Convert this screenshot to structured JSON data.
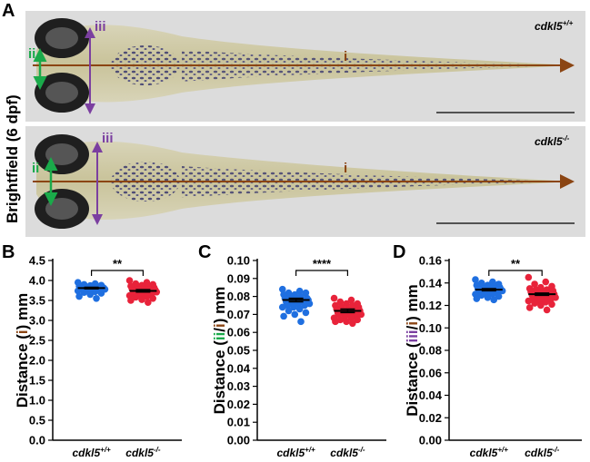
{
  "panel_a": {
    "letter": "A",
    "side_label": "Brightfield (6 dpf)",
    "top_image_genotype": "cdkl5",
    "top_image_genotype_sup": "+/+",
    "bottom_image_genotype": "cdkl5",
    "bottom_image_genotype_sup": "-/-",
    "marker_i": "i",
    "marker_ii": "ii",
    "marker_iii": "iii",
    "colors": {
      "i": "#8b4513",
      "ii": "#1aaa4a",
      "iii": "#7b3fa0"
    }
  },
  "chart_data": [
    {
      "type": "scatter",
      "letter": "B",
      "ylabel_prefix": "Distance (",
      "ylabel_marker": "i",
      "ylabel_suffix": ") mm",
      "marker_colors": [
        "#8b4513"
      ],
      "ylim": [
        0,
        4.5
      ],
      "yticks": [
        "0.0",
        "0.5",
        "1.0",
        "1.5",
        "2.0",
        "2.5",
        "3.0",
        "3.5",
        "4.0",
        "4.5"
      ],
      "categories": [
        "cdkl5",
        "cdkl5"
      ],
      "category_sups": [
        "+/+",
        "-/-"
      ],
      "significance": "**",
      "series": [
        {
          "color": "#1f6fe0",
          "mean": 3.81,
          "sem": 0.02,
          "values": [
            3.95,
            3.92,
            3.9,
            3.88,
            3.87,
            3.86,
            3.85,
            3.84,
            3.83,
            3.83,
            3.82,
            3.82,
            3.81,
            3.81,
            3.8,
            3.8,
            3.79,
            3.79,
            3.78,
            3.78,
            3.77,
            3.76,
            3.75,
            3.74,
            3.72,
            3.7,
            3.68,
            3.65,
            3.6,
            3.55
          ]
        },
        {
          "color": "#e8233a",
          "mean": 3.74,
          "sem": 0.03,
          "values": [
            4.0,
            3.95,
            3.92,
            3.9,
            3.88,
            3.86,
            3.85,
            3.83,
            3.82,
            3.8,
            3.79,
            3.78,
            3.77,
            3.76,
            3.75,
            3.74,
            3.73,
            3.72,
            3.71,
            3.7,
            3.68,
            3.66,
            3.64,
            3.62,
            3.6,
            3.58,
            3.55,
            3.52,
            3.5,
            3.45
          ]
        }
      ]
    },
    {
      "type": "scatter",
      "letter": "C",
      "ylabel_prefix": "Distance (",
      "ylabel_marker": "ii/i",
      "ylabel_suffix": ") mm",
      "marker_colors": [
        "#1aaa4a",
        "#8b4513"
      ],
      "ylim": [
        0,
        0.1
      ],
      "yticks": [
        "0.00",
        "0.01",
        "0.02",
        "0.03",
        "0.04",
        "0.05",
        "0.06",
        "0.07",
        "0.08",
        "0.09",
        "0.10"
      ],
      "categories": [
        "cdkl5",
        "cdkl5"
      ],
      "category_sups": [
        "+/+",
        "-/-"
      ],
      "significance": "****",
      "series": [
        {
          "color": "#1f6fe0",
          "mean": 0.078,
          "sem": 0.001,
          "values": [
            0.084,
            0.083,
            0.082,
            0.082,
            0.081,
            0.081,
            0.08,
            0.08,
            0.079,
            0.079,
            0.079,
            0.078,
            0.078,
            0.078,
            0.077,
            0.077,
            0.077,
            0.076,
            0.076,
            0.076,
            0.075,
            0.075,
            0.074,
            0.074,
            0.073,
            0.072,
            0.071,
            0.07,
            0.069,
            0.066
          ]
        },
        {
          "color": "#e8233a",
          "mean": 0.072,
          "sem": 0.001,
          "values": [
            0.079,
            0.078,
            0.077,
            0.076,
            0.076,
            0.075,
            0.075,
            0.074,
            0.074,
            0.073,
            0.073,
            0.073,
            0.072,
            0.072,
            0.072,
            0.071,
            0.071,
            0.071,
            0.07,
            0.07,
            0.07,
            0.069,
            0.069,
            0.068,
            0.068,
            0.067,
            0.067,
            0.066,
            0.066,
            0.065
          ]
        }
      ]
    },
    {
      "type": "scatter",
      "letter": "D",
      "ylabel_prefix": "Distance (",
      "ylabel_marker": "iii/i",
      "ylabel_suffix": ") mm",
      "marker_colors": [
        "#7b3fa0",
        "#8b4513"
      ],
      "ylim": [
        0,
        0.16
      ],
      "yticks": [
        "0.00",
        "0.02",
        "0.04",
        "0.06",
        "0.08",
        "0.10",
        "0.12",
        "0.14",
        "0.16"
      ],
      "categories": [
        "cdkl5",
        "cdkl5"
      ],
      "category_sups": [
        "+/+",
        "-/-"
      ],
      "significance": "**",
      "series": [
        {
          "color": "#1f6fe0",
          "mean": 0.134,
          "sem": 0.001,
          "values": [
            0.143,
            0.141,
            0.14,
            0.139,
            0.138,
            0.138,
            0.137,
            0.137,
            0.136,
            0.136,
            0.135,
            0.135,
            0.135,
            0.134,
            0.134,
            0.134,
            0.133,
            0.133,
            0.133,
            0.132,
            0.132,
            0.131,
            0.131,
            0.13,
            0.13,
            0.129,
            0.128,
            0.127,
            0.126,
            0.125
          ]
        },
        {
          "color": "#e8233a",
          "mean": 0.13,
          "sem": 0.001,
          "values": [
            0.145,
            0.141,
            0.139,
            0.137,
            0.136,
            0.135,
            0.134,
            0.134,
            0.133,
            0.132,
            0.132,
            0.131,
            0.131,
            0.13,
            0.13,
            0.129,
            0.129,
            0.128,
            0.127,
            0.127,
            0.126,
            0.125,
            0.124,
            0.124,
            0.123,
            0.122,
            0.121,
            0.12,
            0.118,
            0.116
          ]
        }
      ]
    }
  ]
}
